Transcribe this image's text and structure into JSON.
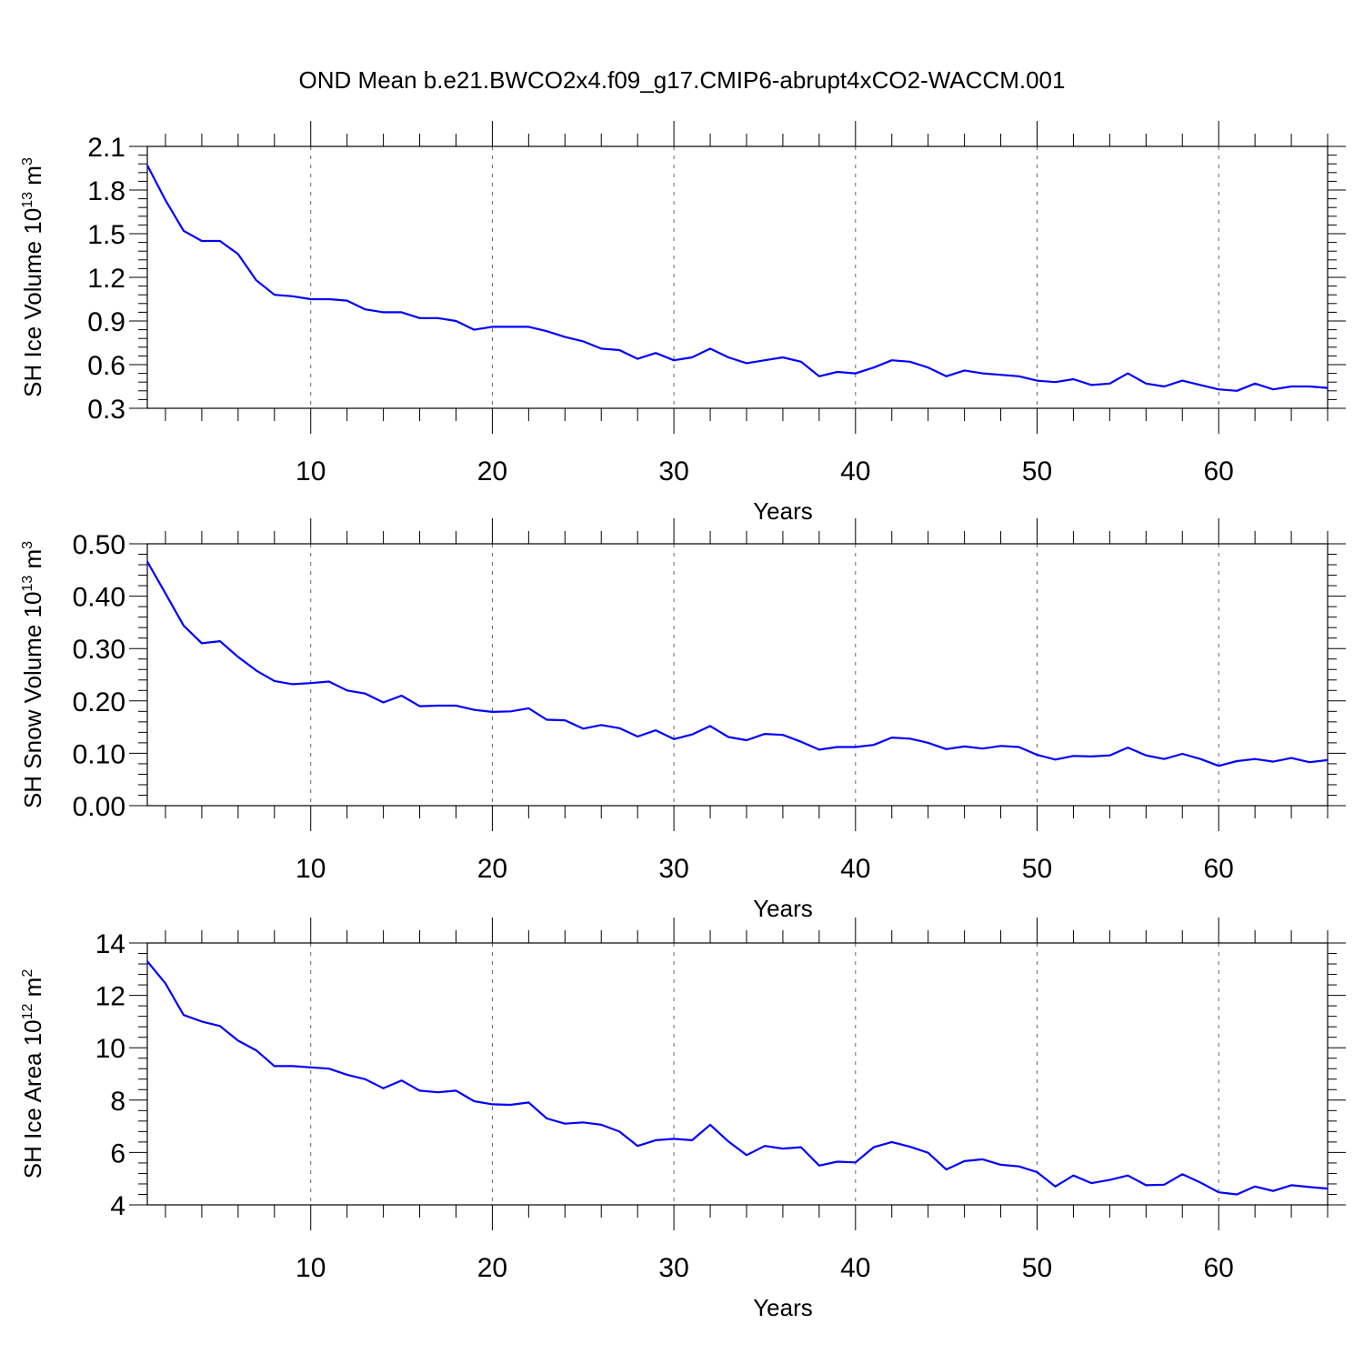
{
  "colors": {
    "line": "#0000ff",
    "axis": "#000000",
    "grid": "#666666"
  },
  "chart_data": {
    "title": "OND Mean b.e21.BWCO2x4.f09_g17.CMIP6-abrupt4xCO2-WACCM.001",
    "panels": [
      {
        "type": "line",
        "ylabel_main": "SH Ice Volume 10",
        "ylabel_exp": "13",
        "ylabel_unit": " m",
        "ylabel_unit_exp": "3",
        "xlabel": "Years",
        "xlim": [
          1,
          66
        ],
        "ylim": [
          0.3,
          2.1
        ],
        "xticks": [
          10,
          20,
          30,
          40,
          50,
          60
        ],
        "xtick_labels": [
          "10",
          "20",
          "30",
          "40",
          "50",
          "60"
        ],
        "yticks": [
          0.3,
          0.6,
          0.9,
          1.2,
          1.5,
          1.8,
          2.1
        ],
        "ytick_labels": [
          "0.3",
          "0.6",
          "0.9",
          "1.2",
          "1.5",
          "1.8",
          "2.1"
        ],
        "x_start": 1,
        "values": [
          1.97,
          1.73,
          1.52,
          1.45,
          1.45,
          1.36,
          1.18,
          1.08,
          1.07,
          1.05,
          1.05,
          1.04,
          0.98,
          0.96,
          0.96,
          0.92,
          0.92,
          0.9,
          0.84,
          0.86,
          0.86,
          0.86,
          0.83,
          0.79,
          0.76,
          0.71,
          0.7,
          0.64,
          0.68,
          0.63,
          0.65,
          0.71,
          0.65,
          0.61,
          0.63,
          0.65,
          0.62,
          0.52,
          0.55,
          0.54,
          0.58,
          0.63,
          0.62,
          0.58,
          0.52,
          0.56,
          0.54,
          0.53,
          0.52,
          0.49,
          0.48,
          0.5,
          0.46,
          0.47,
          0.54,
          0.47,
          0.45,
          0.49,
          0.46,
          0.43,
          0.42,
          0.47,
          0.43,
          0.45,
          0.45,
          0.44
        ]
      },
      {
        "type": "line",
        "ylabel_main": "SH Snow Volume 10",
        "ylabel_exp": "13",
        "ylabel_unit": " m",
        "ylabel_unit_exp": "3",
        "xlabel": "Years",
        "xlim": [
          1,
          66
        ],
        "ylim": [
          0.0,
          0.5
        ],
        "xticks": [
          10,
          20,
          30,
          40,
          50,
          60
        ],
        "xtick_labels": [
          "10",
          "20",
          "30",
          "40",
          "50",
          "60"
        ],
        "yticks": [
          0.0,
          0.1,
          0.2,
          0.3,
          0.4,
          0.5
        ],
        "ytick_labels": [
          "0.00",
          "0.10",
          "0.20",
          "0.30",
          "0.40",
          "0.50"
        ],
        "x_start": 1,
        "values": [
          0.466,
          0.405,
          0.344,
          0.31,
          0.314,
          0.284,
          0.258,
          0.238,
          0.232,
          0.234,
          0.237,
          0.22,
          0.214,
          0.197,
          0.21,
          0.19,
          0.191,
          0.191,
          0.183,
          0.179,
          0.18,
          0.186,
          0.164,
          0.163,
          0.147,
          0.154,
          0.148,
          0.132,
          0.144,
          0.127,
          0.136,
          0.152,
          0.131,
          0.125,
          0.137,
          0.135,
          0.122,
          0.107,
          0.112,
          0.112,
          0.116,
          0.13,
          0.128,
          0.12,
          0.108,
          0.113,
          0.109,
          0.114,
          0.112,
          0.097,
          0.088,
          0.095,
          0.094,
          0.096,
          0.111,
          0.096,
          0.089,
          0.099,
          0.089,
          0.076,
          0.085,
          0.089,
          0.084,
          0.091,
          0.083,
          0.087
        ]
      },
      {
        "type": "line",
        "ylabel_main": "SH Ice Area 10",
        "ylabel_exp": "12",
        "ylabel_unit": " m",
        "ylabel_unit_exp": "2",
        "xlabel": "Years",
        "xlim": [
          1,
          66
        ],
        "ylim": [
          4,
          14
        ],
        "xticks": [
          10,
          20,
          30,
          40,
          50,
          60
        ],
        "xtick_labels": [
          "10",
          "20",
          "30",
          "40",
          "50",
          "60"
        ],
        "yticks": [
          4,
          6,
          8,
          10,
          12,
          14
        ],
        "ytick_labels": [
          "4",
          "6",
          "8",
          "10",
          "12",
          "14"
        ],
        "x_start": 1,
        "values": [
          13.3,
          12.45,
          11.25,
          11.0,
          10.83,
          10.27,
          9.9,
          9.3,
          9.3,
          9.25,
          9.2,
          8.97,
          8.8,
          8.45,
          8.75,
          8.36,
          8.3,
          8.36,
          7.96,
          7.84,
          7.82,
          7.91,
          7.3,
          7.1,
          7.15,
          7.06,
          6.8,
          6.25,
          6.47,
          6.52,
          6.47,
          7.06,
          6.42,
          5.9,
          6.25,
          6.15,
          6.2,
          5.5,
          5.65,
          5.62,
          6.2,
          6.4,
          6.22,
          5.99,
          5.35,
          5.67,
          5.74,
          5.53,
          5.47,
          5.25,
          4.7,
          5.12,
          4.83,
          4.95,
          5.12,
          4.75,
          4.77,
          5.17,
          4.85,
          4.48,
          4.4,
          4.7,
          4.53,
          4.75,
          4.68,
          4.62
        ]
      }
    ]
  }
}
